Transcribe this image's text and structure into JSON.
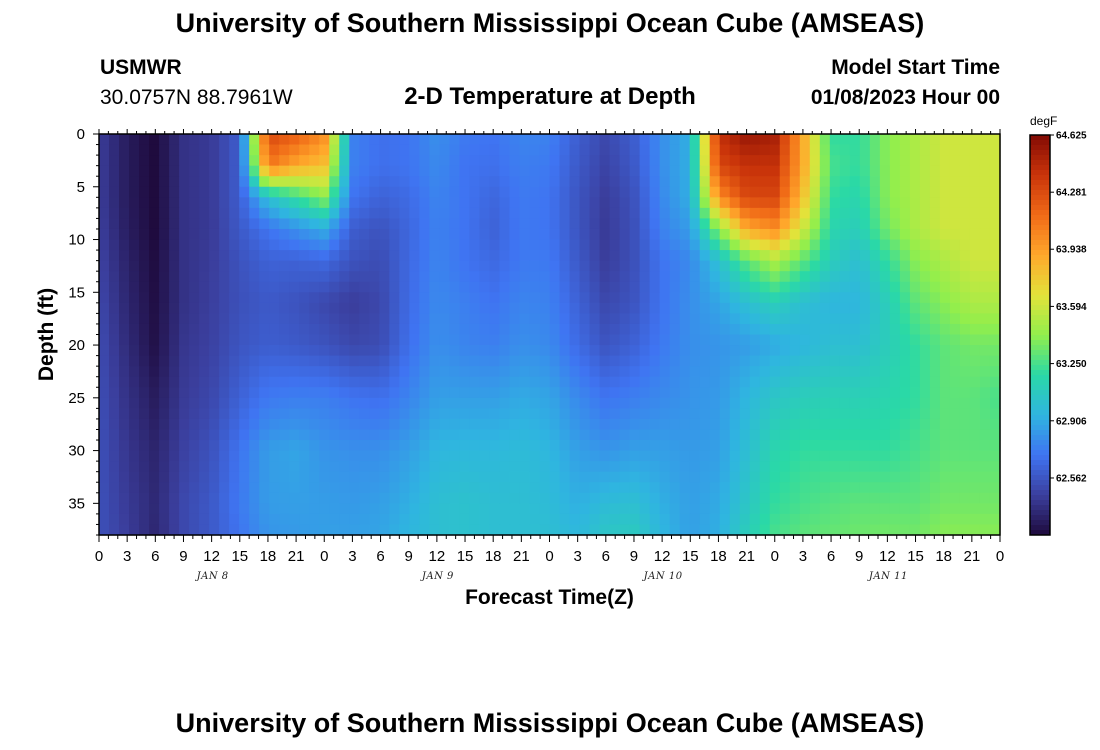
{
  "header": {
    "title": "University of Southern Mississippi Ocean Cube (AMSEAS)",
    "station_name": "USMWR",
    "station_coords": "30.0757N  88.7961W",
    "plot_title": "2-D Temperature at Depth",
    "model_start_label": "Model Start Time",
    "model_start_value": "01/08/2023 Hour 00"
  },
  "footer": {
    "repeated_title": "University of Southern Mississippi Ocean Cube (AMSEAS)"
  },
  "chart_data": {
    "type": "heatmap",
    "xlabel": "Forecast Time(Z)",
    "ylabel": "Depth (ft)",
    "x_hours_range": [
      0,
      96
    ],
    "x_tick_labels": [
      "0",
      "3",
      "6",
      "9",
      "12",
      "15",
      "18",
      "21",
      "0",
      "3",
      "6",
      "9",
      "12",
      "15",
      "18",
      "21",
      "0",
      "3",
      "6",
      "9",
      "12",
      "15",
      "18",
      "21",
      "0",
      "3",
      "6",
      "9",
      "12",
      "15",
      "18",
      "21",
      "0"
    ],
    "date_labels": [
      {
        "text": "JAN 8",
        "hour": 12
      },
      {
        "text": "JAN 9",
        "hour": 36
      },
      {
        "text": "JAN 10",
        "hour": 60
      },
      {
        "text": "JAN 11",
        "hour": 84
      }
    ],
    "y_ticks": [
      0,
      5,
      10,
      15,
      20,
      25,
      30,
      35
    ],
    "y_range": [
      0,
      38
    ],
    "colorbar": {
      "unit": "degF",
      "tick_values": [
        64.625,
        64.281,
        63.938,
        63.594,
        63.25,
        62.906,
        62.562
      ],
      "range": [
        62.219,
        64.625
      ],
      "colors": [
        "#1e0a3c",
        "#3b3f9e",
        "#3f74f2",
        "#2fb5e0",
        "#2ad9a6",
        "#92ee4c",
        "#e3e33a",
        "#ffa72b",
        "#f06a17",
        "#c9340a",
        "#820a04"
      ]
    },
    "grid_hours": [
      0,
      3,
      6,
      9,
      12,
      15,
      18,
      21,
      24,
      27,
      30,
      33,
      36,
      39,
      42,
      45,
      48,
      51,
      54,
      57,
      60,
      63,
      66,
      69,
      72,
      75,
      78,
      81,
      84,
      87,
      90,
      93,
      96
    ],
    "grid_depths": [
      0,
      3,
      6,
      9,
      12,
      16,
      20,
      25,
      30,
      35,
      38
    ],
    "values": [
      [
        62.45,
        62.3,
        62.22,
        62.4,
        62.44,
        62.6,
        64.3,
        64.2,
        64.0,
        62.75,
        62.68,
        62.7,
        62.8,
        62.72,
        62.7,
        62.76,
        62.75,
        62.6,
        62.5,
        62.6,
        62.8,
        62.92,
        64.4,
        64.55,
        64.5,
        63.9,
        63.2,
        63.2,
        63.4,
        63.5,
        63.6,
        63.6,
        63.6
      ],
      [
        62.45,
        62.3,
        62.22,
        62.4,
        62.44,
        62.6,
        64.1,
        63.9,
        63.8,
        62.75,
        62.68,
        62.7,
        62.78,
        62.7,
        62.68,
        62.74,
        62.72,
        62.58,
        62.48,
        62.58,
        62.8,
        62.92,
        64.3,
        64.4,
        64.4,
        63.9,
        63.25,
        63.2,
        63.4,
        63.5,
        63.6,
        63.6,
        63.6
      ],
      [
        62.45,
        62.3,
        62.22,
        62.4,
        62.44,
        62.6,
        63.0,
        63.2,
        63.4,
        62.7,
        62.62,
        62.66,
        62.76,
        62.7,
        62.64,
        62.72,
        62.7,
        62.56,
        62.45,
        62.55,
        62.78,
        62.92,
        64.0,
        64.3,
        64.3,
        63.8,
        63.2,
        63.15,
        63.4,
        63.5,
        63.6,
        63.6,
        63.6
      ],
      [
        62.46,
        62.31,
        62.22,
        62.4,
        62.44,
        62.58,
        62.7,
        62.8,
        62.9,
        62.6,
        62.55,
        62.64,
        62.75,
        62.7,
        62.62,
        62.72,
        62.7,
        62.56,
        62.44,
        62.54,
        62.75,
        62.85,
        63.4,
        63.9,
        64.0,
        63.6,
        63.15,
        63.1,
        63.35,
        63.5,
        63.6,
        63.6,
        63.6
      ],
      [
        62.48,
        62.33,
        62.23,
        62.4,
        62.45,
        62.55,
        62.62,
        62.62,
        62.65,
        62.55,
        62.52,
        62.65,
        62.76,
        62.7,
        62.65,
        62.72,
        62.72,
        62.58,
        62.45,
        62.54,
        62.7,
        62.78,
        63.0,
        63.3,
        63.5,
        63.3,
        63.1,
        63.0,
        63.2,
        63.4,
        63.5,
        63.6,
        63.6
      ],
      [
        62.5,
        62.35,
        62.24,
        62.4,
        62.46,
        62.54,
        62.58,
        62.55,
        62.5,
        62.45,
        62.5,
        62.66,
        62.78,
        62.74,
        62.7,
        62.76,
        62.75,
        62.62,
        62.5,
        62.56,
        62.7,
        62.8,
        62.88,
        63.0,
        63.1,
        63.0,
        62.95,
        62.95,
        63.1,
        63.3,
        63.4,
        63.5,
        63.5
      ],
      [
        62.52,
        62.37,
        62.25,
        62.42,
        62.47,
        62.56,
        62.6,
        62.58,
        62.55,
        62.5,
        62.52,
        62.68,
        62.8,
        62.76,
        62.74,
        62.8,
        62.78,
        62.66,
        62.56,
        62.62,
        62.72,
        62.8,
        62.82,
        62.85,
        62.9,
        62.95,
        63.0,
        63.0,
        63.1,
        63.2,
        63.3,
        63.35,
        63.35
      ],
      [
        62.53,
        62.4,
        62.3,
        62.44,
        62.5,
        62.62,
        62.72,
        62.74,
        62.74,
        62.7,
        62.68,
        62.76,
        62.86,
        62.86,
        62.86,
        62.9,
        62.88,
        62.78,
        62.7,
        62.74,
        62.78,
        62.82,
        62.84,
        62.95,
        63.05,
        63.1,
        63.12,
        63.12,
        63.15,
        63.2,
        63.3,
        63.3,
        63.25
      ],
      [
        62.54,
        62.42,
        62.34,
        62.47,
        62.55,
        62.7,
        62.85,
        62.88,
        62.82,
        62.8,
        62.8,
        62.86,
        62.95,
        62.96,
        62.96,
        62.98,
        62.95,
        62.86,
        62.82,
        62.86,
        62.86,
        62.84,
        62.86,
        63.0,
        63.15,
        63.2,
        63.2,
        63.2,
        63.2,
        63.25,
        63.3,
        63.3,
        63.3
      ],
      [
        62.54,
        62.44,
        62.36,
        62.5,
        62.58,
        62.72,
        62.85,
        62.86,
        62.85,
        62.84,
        62.86,
        62.92,
        63.0,
        63.02,
        63.0,
        63.0,
        62.98,
        62.92,
        62.98,
        63.0,
        62.92,
        62.86,
        62.9,
        63.05,
        63.2,
        63.25,
        63.28,
        63.3,
        63.3,
        63.3,
        63.35,
        63.35,
        63.35
      ],
      [
        62.54,
        62.45,
        62.35,
        62.5,
        62.58,
        62.7,
        62.82,
        62.84,
        62.86,
        62.86,
        62.88,
        62.95,
        63.0,
        63.02,
        63.0,
        63.0,
        63.0,
        62.96,
        63.05,
        63.08,
        62.95,
        62.86,
        62.92,
        63.1,
        63.25,
        63.3,
        63.32,
        63.34,
        63.35,
        63.35,
        63.4,
        63.4,
        63.4
      ]
    ]
  }
}
